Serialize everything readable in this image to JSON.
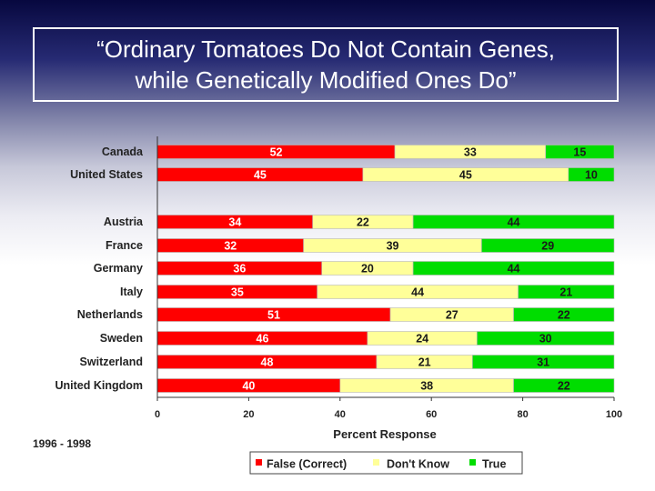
{
  "header": {
    "title_line1": "“Ordinary Tomatoes Do Not Contain Genes,",
    "title_line2": "while Genetically Modified Ones Do”"
  },
  "footnote": "1996 - 1998",
  "colors": {
    "false_correct": "#ff0000",
    "dont_know": "#ffff99",
    "true": "#00dd00"
  },
  "chart_data": {
    "type": "bar",
    "orientation": "horizontal",
    "stacked": true,
    "title": "“Ordinary Tomatoes Do Not Contain Genes, while Genetically Modified Ones Do”",
    "xlabel": "Percent Response",
    "ylabel": "",
    "xlim": [
      0,
      100
    ],
    "x_ticks": [
      "0",
      "20",
      "40",
      "60",
      "80",
      "100"
    ],
    "categories": [
      "Canada",
      "United States",
      "Austria",
      "France",
      "Germany",
      "Italy",
      "Netherlands",
      "Sweden",
      "Switzerland",
      "United Kingdom"
    ],
    "series": [
      {
        "name": "False (Correct)",
        "values": [
          52,
          45,
          34,
          32,
          36,
          35,
          51,
          46,
          48,
          40
        ]
      },
      {
        "name": "Don't Know",
        "values": [
          33,
          45,
          22,
          39,
          20,
          44,
          27,
          24,
          21,
          38
        ]
      },
      {
        "name": "True",
        "values": [
          15,
          10,
          44,
          29,
          44,
          21,
          22,
          30,
          31,
          22
        ]
      }
    ],
    "legend_position": "bottom"
  }
}
